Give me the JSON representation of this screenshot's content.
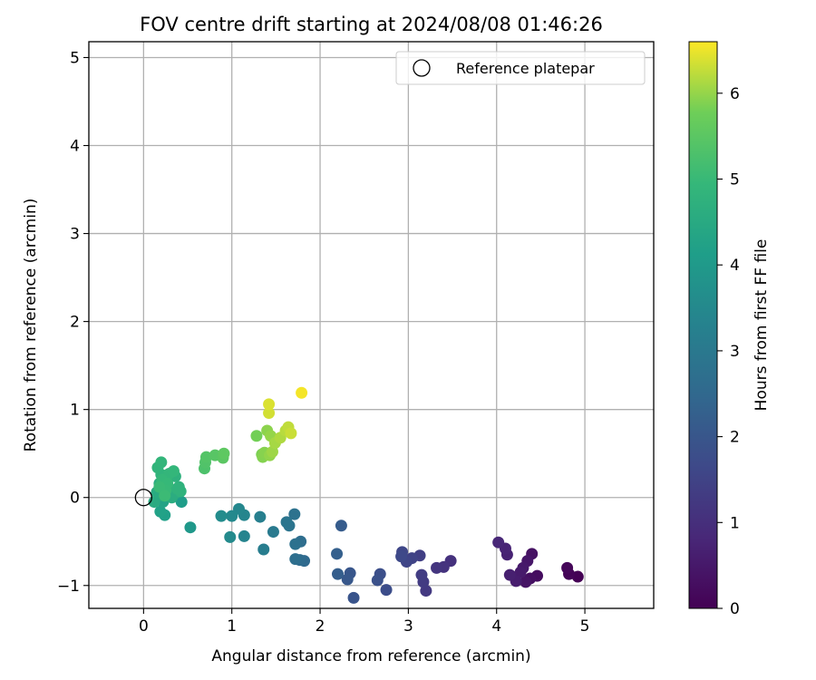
{
  "chart_data": {
    "type": "scatter",
    "title": "FOV centre drift starting at 2024/08/08 01:46:26",
    "xlabel": "Angular distance from reference (arcmin)",
    "ylabel": "Rotation from reference (arcmin)",
    "xlim": [
      -0.62,
      5.78
    ],
    "ylim": [
      -1.26,
      5.18
    ],
    "xticks": [
      0,
      1,
      2,
      3,
      4,
      5
    ],
    "yticks": [
      -1,
      0,
      1,
      2,
      3,
      4,
      5
    ],
    "grid": true,
    "legend": {
      "position": "top-right",
      "entries": [
        "Reference platepar"
      ]
    },
    "reference": {
      "x": 0,
      "y": 0,
      "label": "Reference platepar"
    },
    "colorbar": {
      "label": "Hours from first FF file",
      "colormap": "viridis",
      "range": [
        0,
        6.6
      ],
      "ticks": [
        0,
        1,
        2,
        3,
        4,
        5,
        6
      ]
    },
    "points": [
      [
        4.92,
        -0.9,
        0.0
      ],
      [
        4.82,
        -0.87,
        0.07
      ],
      [
        4.8,
        -0.8,
        0.12
      ],
      [
        4.46,
        -0.89,
        0.25
      ],
      [
        4.38,
        -0.92,
        0.3
      ],
      [
        4.4,
        -0.64,
        0.35
      ],
      [
        4.33,
        -0.96,
        0.4
      ],
      [
        4.35,
        -0.72,
        0.45
      ],
      [
        4.3,
        -0.8,
        0.5
      ],
      [
        4.27,
        -0.85,
        0.55
      ],
      [
        4.22,
        -0.95,
        0.6
      ],
      [
        4.15,
        -0.88,
        0.65
      ],
      [
        4.12,
        -0.65,
        0.7
      ],
      [
        4.1,
        -0.58,
        0.75
      ],
      [
        4.02,
        -0.51,
        0.8
      ],
      [
        3.48,
        -0.72,
        1.05
      ],
      [
        3.4,
        -0.79,
        1.1
      ],
      [
        3.32,
        -0.8,
        1.15
      ],
      [
        3.2,
        -1.06,
        1.25
      ],
      [
        3.17,
        -0.96,
        1.3
      ],
      [
        3.15,
        -0.88,
        1.35
      ],
      [
        3.13,
        -0.66,
        1.4
      ],
      [
        3.04,
        -0.69,
        1.5
      ],
      [
        2.98,
        -0.73,
        1.55
      ],
      [
        2.93,
        -0.62,
        1.6
      ],
      [
        2.92,
        -0.67,
        1.65
      ],
      [
        2.75,
        -1.05,
        1.75
      ],
      [
        2.68,
        -0.87,
        1.8
      ],
      [
        2.65,
        -0.94,
        1.85
      ],
      [
        2.38,
        -1.14,
        1.95
      ],
      [
        2.34,
        -0.86,
        2.0
      ],
      [
        2.31,
        -0.93,
        2.05
      ],
      [
        2.24,
        -0.32,
        2.15
      ],
      [
        2.2,
        -0.87,
        2.2
      ],
      [
        2.19,
        -0.64,
        2.25
      ],
      [
        1.82,
        -0.72,
        2.55
      ],
      [
        1.77,
        -0.71,
        2.6
      ],
      [
        1.78,
        -0.5,
        2.65
      ],
      [
        1.72,
        -0.7,
        2.7
      ],
      [
        1.72,
        -0.53,
        2.75
      ],
      [
        1.71,
        -0.19,
        2.8
      ],
      [
        1.65,
        -0.32,
        2.85
      ],
      [
        1.62,
        -0.28,
        2.9
      ],
      [
        1.47,
        -0.39,
        3.05
      ],
      [
        1.36,
        -0.59,
        3.15
      ],
      [
        1.32,
        -0.22,
        3.2
      ],
      [
        1.14,
        -0.44,
        3.35
      ],
      [
        1.14,
        -0.2,
        3.4
      ],
      [
        1.08,
        -0.13,
        3.45
      ],
      [
        1.0,
        -0.21,
        3.5
      ],
      [
        0.98,
        -0.45,
        3.55
      ],
      [
        0.88,
        -0.21,
        3.6
      ],
      [
        0.53,
        -0.34,
        3.95
      ],
      [
        0.43,
        -0.05,
        4.1
      ],
      [
        0.24,
        -0.2,
        4.2
      ],
      [
        0.19,
        -0.16,
        4.25
      ],
      [
        0.22,
        -0.05,
        4.3
      ],
      [
        0.28,
        0.1,
        4.35
      ],
      [
        0.3,
        0.05,
        4.4
      ],
      [
        0.24,
        0.13,
        4.45
      ],
      [
        0.17,
        0.02,
        4.5
      ],
      [
        0.12,
        -0.05,
        4.52
      ],
      [
        0.15,
        0.06,
        4.55
      ],
      [
        0.32,
        0.0,
        4.58
      ],
      [
        0.36,
        0.05,
        4.6
      ],
      [
        0.18,
        0.16,
        4.62
      ],
      [
        0.22,
        0.22,
        4.65
      ],
      [
        0.26,
        0.18,
        4.68
      ],
      [
        0.32,
        0.28,
        4.7
      ],
      [
        0.36,
        0.24,
        4.72
      ],
      [
        0.4,
        0.12,
        4.75
      ],
      [
        0.42,
        0.07,
        4.78
      ],
      [
        0.38,
        0.1,
        4.8
      ],
      [
        0.2,
        0.26,
        4.82
      ],
      [
        0.16,
        0.34,
        4.85
      ],
      [
        0.2,
        0.4,
        4.88
      ],
      [
        0.29,
        0.27,
        4.9
      ],
      [
        0.34,
        0.3,
        4.92
      ],
      [
        0.21,
        0.2,
        4.95
      ],
      [
        0.27,
        0.16,
        4.97
      ],
      [
        0.25,
        0.08,
        5.0
      ],
      [
        0.18,
        0.12,
        5.02
      ],
      [
        0.24,
        0.02,
        5.05
      ],
      [
        0.69,
        0.33,
        5.3
      ],
      [
        0.7,
        0.4,
        5.35
      ],
      [
        0.71,
        0.46,
        5.4
      ],
      [
        0.81,
        0.48,
        5.45
      ],
      [
        0.9,
        0.45,
        5.5
      ],
      [
        0.91,
        0.5,
        5.55
      ],
      [
        1.28,
        0.7,
        5.8
      ],
      [
        1.34,
        0.49,
        5.85
      ],
      [
        1.35,
        0.46,
        5.9
      ],
      [
        1.37,
        0.51,
        5.92
      ],
      [
        1.4,
        0.76,
        5.95
      ],
      [
        1.43,
        0.48,
        5.98
      ],
      [
        1.44,
        0.7,
        6.0
      ],
      [
        1.46,
        0.52,
        6.05
      ],
      [
        1.49,
        0.62,
        6.1
      ],
      [
        1.55,
        0.68,
        6.15
      ],
      [
        1.61,
        0.76,
        6.2
      ],
      [
        1.64,
        0.8,
        6.25
      ],
      [
        1.67,
        0.73,
        6.3
      ],
      [
        1.42,
        0.96,
        6.35
      ],
      [
        1.42,
        1.06,
        6.4
      ],
      [
        1.79,
        1.19,
        6.55
      ]
    ]
  }
}
